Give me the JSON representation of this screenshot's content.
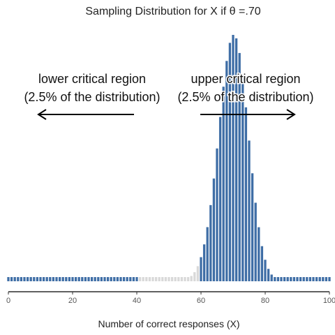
{
  "chart_data": {
    "type": "bar",
    "title": "Sampling Distribution for X if θ =.70",
    "xlabel": "Number of correct responses (X)",
    "ylabel": "",
    "xlim": [
      0,
      100
    ],
    "x_ticks": [
      "0",
      "20",
      "40",
      "60",
      "80",
      "100"
    ],
    "n": 100,
    "theta": 0.7,
    "colors": {
      "critical": "#3f6ea6",
      "noncritical": "#d9d9d9"
    },
    "series": [
      {
        "x_range": [
          0,
          40
        ],
        "region": "lower critical region",
        "color": "#3f6ea6"
      },
      {
        "x_range": [
          41,
          59
        ],
        "region": "non-critical",
        "color": "#d9d9d9"
      },
      {
        "x_range": [
          60,
          100
        ],
        "region": "upper critical region",
        "color": "#3f6ea6"
      }
    ],
    "annotations": {
      "lower": {
        "line1": "lower critical region",
        "line2": "(2.5% of the distribution)",
        "arrow": "left"
      },
      "upper": {
        "line1": "upper critical region",
        "line2": "(2.5% of the distribution)",
        "arrow": "right"
      }
    }
  }
}
